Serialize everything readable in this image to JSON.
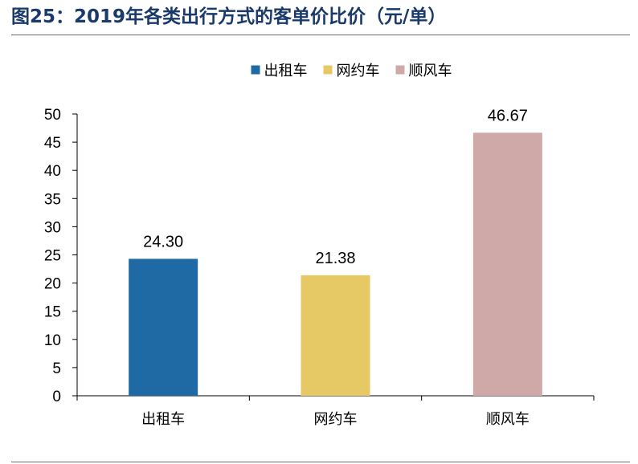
{
  "figure": {
    "title": "图25：2019年各类出行方式的客单价比价（元/单）"
  },
  "chart_data": {
    "type": "bar",
    "title": "",
    "xlabel": "",
    "ylabel": "",
    "categories": [
      "出租车",
      "网约车",
      "顺风车"
    ],
    "values": [
      24.3,
      21.38,
      46.67
    ],
    "value_labels": [
      "24.30",
      "21.38",
      "46.67"
    ],
    "colors": [
      "#1f6aa5",
      "#e6c864",
      "#cfa8a8"
    ],
    "ylim": [
      0,
      50
    ],
    "yticks": [
      0,
      5,
      10,
      15,
      20,
      25,
      30,
      35,
      40,
      45,
      50
    ],
    "grid": false,
    "legend": {
      "position": "top-center",
      "entries": [
        "出租车",
        "网约车",
        "顺风车"
      ]
    }
  }
}
